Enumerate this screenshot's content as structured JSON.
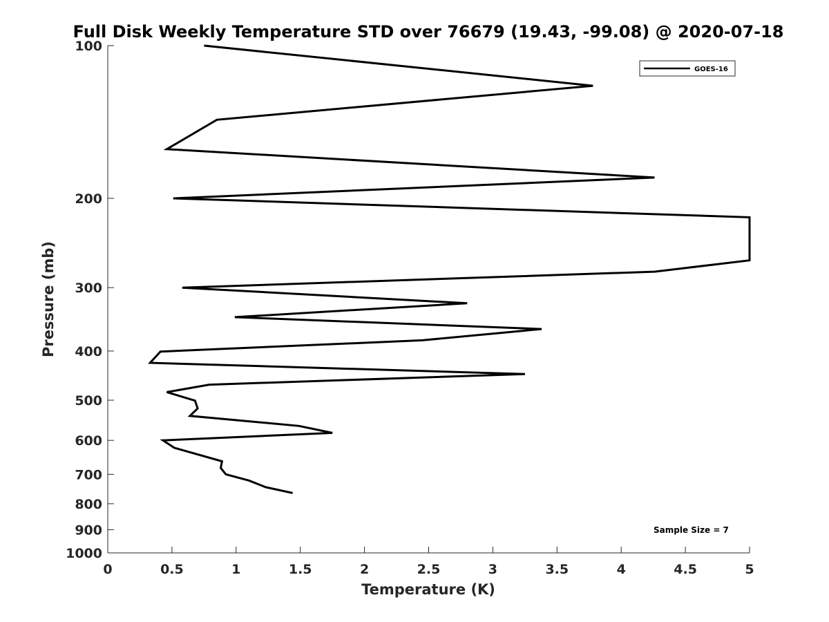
{
  "chart_data": {
    "type": "line",
    "title": "Full Disk Weekly Temperature STD over 76679 (19.43, -99.08) @ 2020-07-18",
    "xlabel": "Temperature (K)",
    "ylabel": "Pressure (mb)",
    "xlim": [
      0,
      5
    ],
    "ylim": [
      100,
      1000
    ],
    "yscale": "log",
    "yreversed": true,
    "xticks": [
      0,
      0.5,
      1,
      1.5,
      2,
      2.5,
      3,
      3.5,
      4,
      4.5,
      5
    ],
    "xtick_labels": [
      "0",
      "0.5",
      "1",
      "1.5",
      "2",
      "2.5",
      "3",
      "3.5",
      "4",
      "4.5",
      "5"
    ],
    "yticks": [
      100,
      200,
      300,
      400,
      500,
      600,
      700,
      800,
      900,
      1000
    ],
    "ytick_labels": [
      "100",
      "200",
      "300",
      "400",
      "500",
      "600",
      "700",
      "800",
      "900",
      "1000"
    ],
    "grid": false,
    "legend_position": "top-right",
    "series": [
      {
        "name": "GOES-16",
        "color": "#000000",
        "x": [
          0.75,
          3.78,
          0.85,
          0.46,
          4.26,
          0.51,
          5.0,
          5.0,
          4.26,
          0.58,
          2.8,
          0.99,
          3.38,
          2.45,
          0.41,
          0.33,
          3.25,
          0.79,
          0.46,
          0.68,
          0.7,
          0.64,
          1.49,
          1.75,
          0.43,
          0.52,
          0.89,
          0.88,
          0.92,
          1.1,
          1.23,
          1.44
        ],
        "y": [
          100,
          120,
          140,
          160,
          182,
          200,
          218,
          265,
          279,
          300,
          322,
          343,
          362,
          381,
          401,
          422,
          444,
          466,
          482,
          501,
          519,
          537,
          562,
          580,
          600,
          621,
          660,
          680,
          700,
          720,
          742,
          762
        ]
      }
    ],
    "annotations": [
      "Sample Size = 7"
    ]
  }
}
